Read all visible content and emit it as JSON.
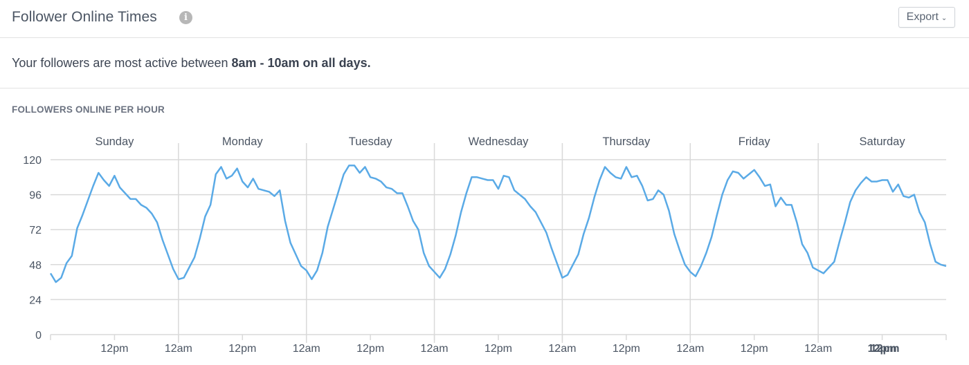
{
  "header": {
    "title": "Follower Online Times",
    "info_icon": "info-icon",
    "export_label": "Export",
    "export_icon": "chevron-down-icon"
  },
  "summary": {
    "prefix": "Your followers are most active between ",
    "highlight": "8am - 10am on all days."
  },
  "chart_label": "FOLLOWERS ONLINE PER HOUR",
  "colors": {
    "line": "#5aaae6",
    "grid": "#d9d9d9",
    "text": "#4b5563"
  },
  "chart_data": {
    "type": "line",
    "title": "FOLLOWERS ONLINE PER HOUR",
    "xlabel": "",
    "ylabel": "",
    "ylim": [
      0,
      120
    ],
    "yticks": [
      0,
      24,
      48,
      72,
      96,
      120
    ],
    "grid": true,
    "legend": null,
    "days": [
      "Sunday",
      "Monday",
      "Tuesday",
      "Wednesday",
      "Thursday",
      "Friday",
      "Saturday"
    ],
    "xtick_labels": [
      "12pm",
      "12am",
      "12pm",
      "12am",
      "12pm",
      "12am",
      "12pm",
      "12am",
      "12pm",
      "12am",
      "12pm",
      "12am",
      "12pm",
      "12pm"
    ],
    "series": [
      {
        "name": "Followers online",
        "hourly_by_day": {
          "Sunday": [
            42,
            36,
            39,
            49,
            54,
            73,
            82,
            92,
            102,
            111,
            106,
            102,
            109,
            101,
            97,
            93,
            93,
            89,
            87,
            83,
            77,
            65,
            55,
            45
          ],
          "Monday": [
            38,
            39,
            46,
            53,
            66,
            81,
            89,
            110,
            115,
            107,
            109,
            114,
            105,
            101,
            107,
            100,
            99,
            98,
            95,
            99,
            78,
            63,
            55,
            47
          ],
          "Tuesday": [
            44,
            38,
            44,
            56,
            74,
            86,
            98,
            110,
            116,
            116,
            111,
            115,
            108,
            107,
            105,
            101,
            100,
            97,
            97,
            88,
            78,
            72,
            56,
            47
          ],
          "Wednesday": [
            43,
            39,
            45,
            55,
            68,
            84,
            97,
            108,
            108,
            107,
            106,
            106,
            100,
            109,
            108,
            99,
            96,
            93,
            88,
            84,
            77,
            70,
            59,
            49
          ],
          "Thursday": [
            39,
            41,
            48,
            55,
            69,
            80,
            94,
            106,
            115,
            111,
            108,
            107,
            115,
            108,
            109,
            102,
            92,
            93,
            99,
            96,
            85,
            69,
            58,
            48
          ],
          "Friday": [
            43,
            40,
            47,
            56,
            67,
            82,
            96,
            106,
            112,
            111,
            107,
            110,
            113,
            108,
            102,
            103,
            88,
            94,
            89,
            89,
            77,
            62,
            56,
            46
          ],
          "Saturday": [
            44,
            42,
            46,
            50,
            64,
            77,
            91,
            99,
            104,
            108,
            105,
            105,
            106,
            106,
            98,
            103,
            95,
            94,
            96,
            84,
            77,
            62,
            50,
            48
          ]
        }
      }
    ]
  }
}
